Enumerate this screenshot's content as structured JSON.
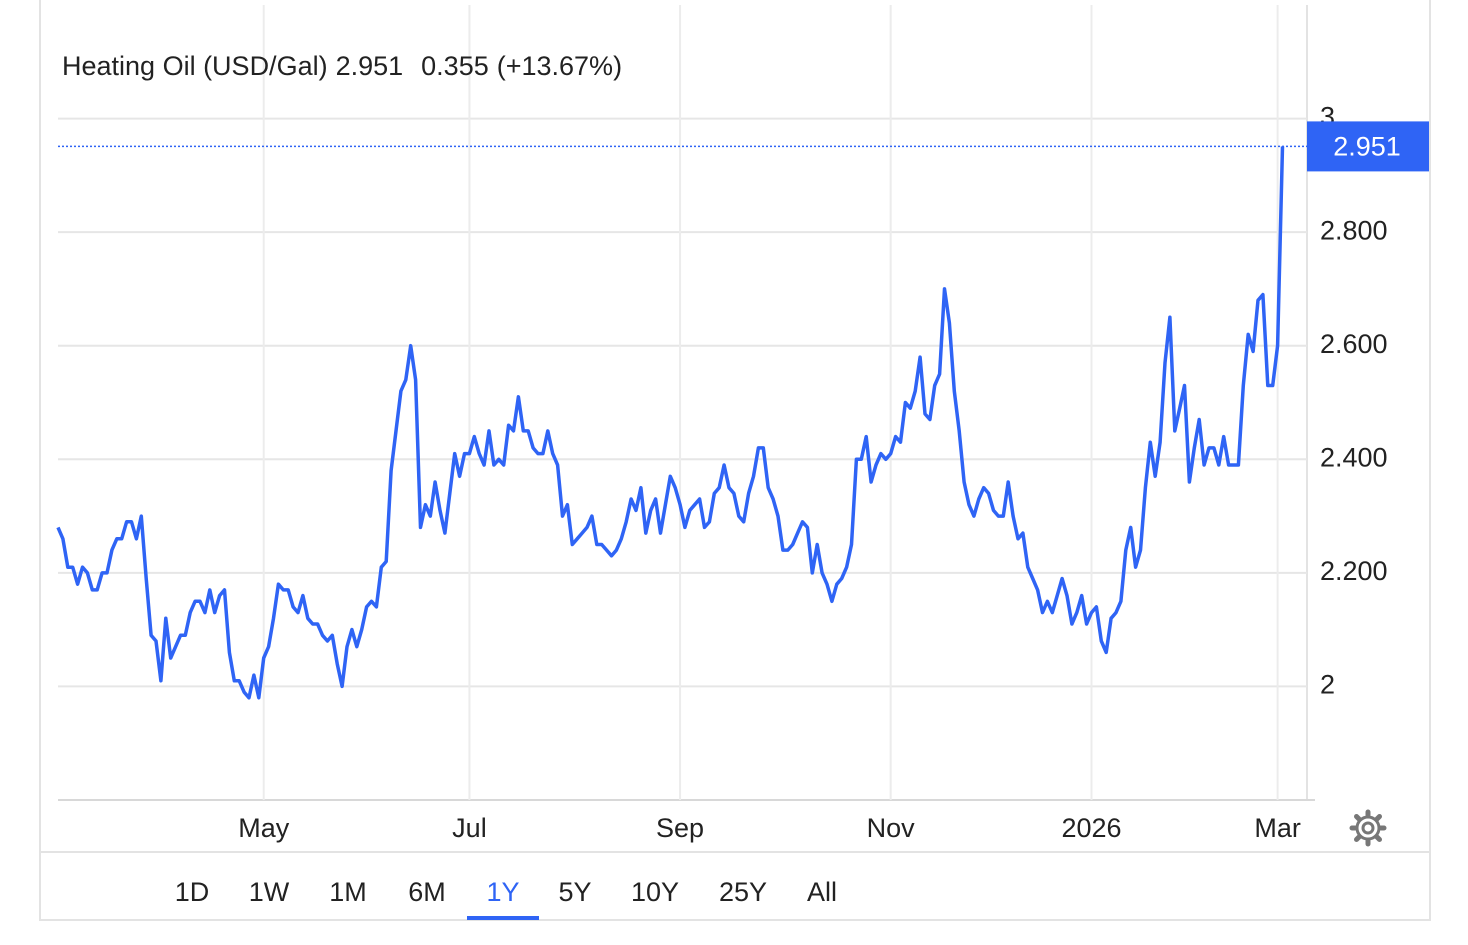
{
  "chart_data": {
    "type": "line",
    "title": "Heating Oil (USD/Gal)",
    "change": 0.355,
    "change_pct": "(+13.67%)",
    "color": "#2f64f5",
    "change_color": "#2bc23a",
    "grid": true,
    "values": [
      2.28,
      2.26,
      2.21,
      2.21,
      2.18,
      2.21,
      2.2,
      2.17,
      2.17,
      2.2,
      2.2,
      2.24,
      2.26,
      2.26,
      2.29,
      2.29,
      2.26,
      2.3,
      2.19,
      2.09,
      2.08,
      2.01,
      2.12,
      2.05,
      2.07,
      2.09,
      2.09,
      2.13,
      2.15,
      2.15,
      2.13,
      2.17,
      2.13,
      2.16,
      2.17,
      2.06,
      2.01,
      2.01,
      1.99,
      1.98,
      2.02,
      1.98,
      2.05,
      2.07,
      2.12,
      2.18,
      2.17,
      2.17,
      2.14,
      2.13,
      2.16,
      2.12,
      2.11,
      2.11,
      2.09,
      2.08,
      2.09,
      2.04,
      2.0,
      2.07,
      2.1,
      2.07,
      2.1,
      2.14,
      2.15,
      2.14,
      2.21,
      2.22,
      2.38,
      2.45,
      2.52,
      2.54,
      2.6,
      2.54,
      2.28,
      2.32,
      2.3,
      2.36,
      2.31,
      2.27,
      2.34,
      2.41,
      2.37,
      2.41,
      2.41,
      2.44,
      2.41,
      2.39,
      2.45,
      2.39,
      2.4,
      2.39,
      2.46,
      2.45,
      2.51,
      2.45,
      2.45,
      2.42,
      2.41,
      2.41,
      2.45,
      2.41,
      2.39,
      2.3,
      2.32,
      2.25,
      2.26,
      2.27,
      2.28,
      2.3,
      2.25,
      2.25,
      2.24,
      2.23,
      2.24,
      2.26,
      2.29,
      2.33,
      2.31,
      2.35,
      2.27,
      2.31,
      2.33,
      2.27,
      2.32,
      2.37,
      2.35,
      2.32,
      2.28,
      2.31,
      2.32,
      2.33,
      2.28,
      2.29,
      2.34,
      2.35,
      2.39,
      2.35,
      2.34,
      2.3,
      2.29,
      2.34,
      2.37,
      2.42,
      2.42,
      2.35,
      2.33,
      2.3,
      2.24,
      2.24,
      2.25,
      2.27,
      2.29,
      2.28,
      2.2,
      2.25,
      2.2,
      2.18,
      2.15,
      2.18,
      2.19,
      2.21,
      2.25,
      2.4,
      2.4,
      2.44,
      2.36,
      2.39,
      2.41,
      2.4,
      2.41,
      2.44,
      2.43,
      2.5,
      2.49,
      2.52,
      2.58,
      2.48,
      2.47,
      2.53,
      2.55,
      2.7,
      2.64,
      2.52,
      2.45,
      2.36,
      2.32,
      2.3,
      2.33,
      2.35,
      2.34,
      2.31,
      2.3,
      2.3,
      2.36,
      2.3,
      2.26,
      2.27,
      2.21,
      2.19,
      2.17,
      2.13,
      2.15,
      2.13,
      2.16,
      2.19,
      2.16,
      2.11,
      2.13,
      2.16,
      2.11,
      2.13,
      2.14,
      2.08,
      2.06,
      2.12,
      2.13,
      2.15,
      2.24,
      2.28,
      2.21,
      2.24,
      2.35,
      2.43,
      2.37,
      2.43,
      2.57,
      2.65,
      2.45,
      2.49,
      2.53,
      2.36,
      2.42,
      2.47,
      2.39,
      2.42,
      2.42,
      2.39,
      2.44,
      2.39,
      2.39,
      2.39,
      2.53,
      2.62,
      2.59,
      2.68,
      2.69,
      2.53,
      2.53,
      2.6,
      2.951
    ],
    "xlim": [
      0,
      255
    ],
    "xticks": [
      {
        "value": 42,
        "label": "May"
      },
      {
        "value": 84,
        "label": "Jul"
      },
      {
        "value": 127,
        "label": "Sep"
      },
      {
        "value": 170,
        "label": "Nov"
      },
      {
        "value": 211,
        "label": "2026"
      },
      {
        "value": 249,
        "label": "Mar"
      }
    ],
    "ylim": [
      1.8,
      3.2
    ],
    "yticks": [
      2,
      {
        "value": 2.2,
        "label": "2.200"
      },
      {
        "value": 2.4,
        "label": "2.400"
      },
      {
        "value": 2.6,
        "label": "2.600"
      },
      {
        "value": 2.8,
        "label": "2.800"
      },
      3
    ],
    "ranges": [
      "1D",
      "1W",
      "1M",
      "6M",
      "1Y",
      "5Y",
      "10Y",
      "25Y",
      "All"
    ],
    "active_range": "1Y"
  }
}
